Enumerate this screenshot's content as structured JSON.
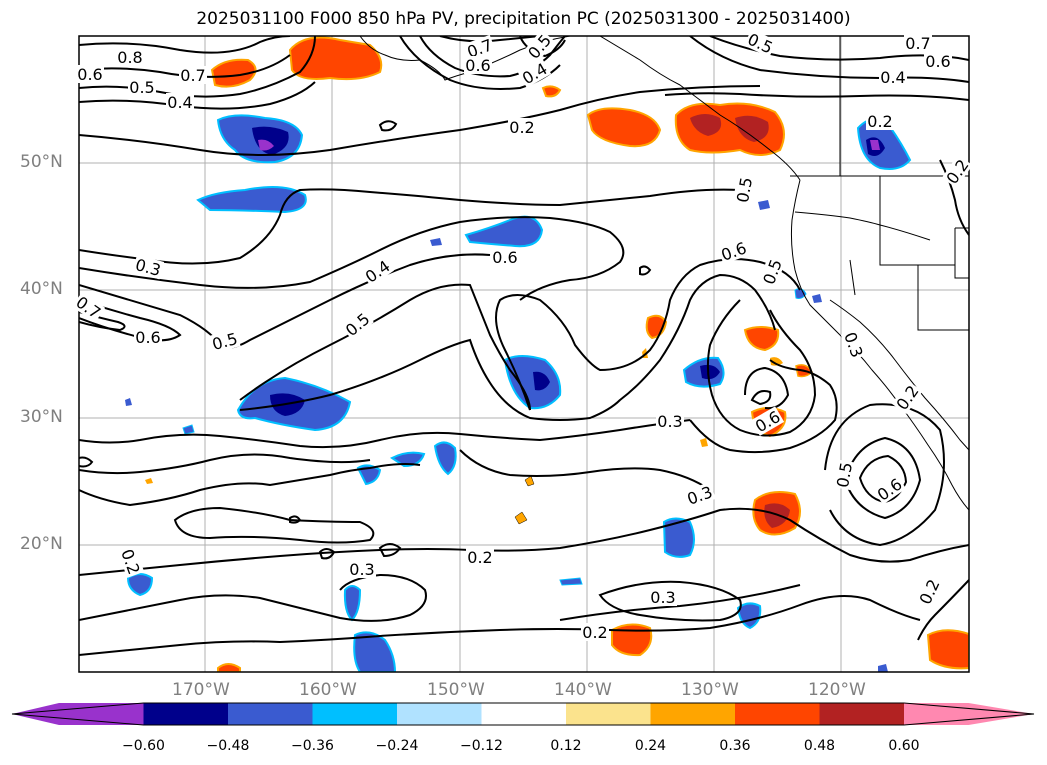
{
  "title": "2025031100 F000 850 hPa PV, precipitation PC (2025031300 - 2025031400)",
  "lat_labels": [
    "50°N",
    "40°N",
    "30°N",
    "20°N"
  ],
  "lon_labels": [
    "170°W",
    "160°W",
    "150°W",
    "140°W",
    "130°W",
    "120°W"
  ],
  "colorbar": {
    "tick_labels": [
      "−0.60",
      "−0.48",
      "−0.36",
      "−0.24",
      "−0.12",
      "0.12",
      "0.24",
      "0.36",
      "0.48",
      "0.60"
    ],
    "colors": [
      "#9932cc",
      "#00008b",
      "#3a5bd0",
      "#00bfff",
      "#b0e2ff",
      "#ffffff",
      "#fbe38d",
      "#ffa500",
      "#ff4500",
      "#b22222",
      "#ff88b0"
    ]
  },
  "contour_labels": [
    {
      "t": "0.8"
    },
    {
      "t": "0.6"
    },
    {
      "t": "0.7"
    },
    {
      "t": "0.5"
    },
    {
      "t": "0.4"
    },
    {
      "t": "0.7"
    },
    {
      "t": "0.6"
    },
    {
      "t": "0.5"
    },
    {
      "t": "0.4"
    },
    {
      "t": "0.5"
    },
    {
      "t": "0.7"
    },
    {
      "t": "0.6"
    },
    {
      "t": "0.4"
    },
    {
      "t": "0.2"
    },
    {
      "t": "0.2"
    },
    {
      "t": "0.3"
    },
    {
      "t": "0.4"
    },
    {
      "t": "0.6"
    },
    {
      "t": "0.5"
    },
    {
      "t": "0.6"
    },
    {
      "t": "0.5"
    },
    {
      "t": "0.7"
    },
    {
      "t": "0.6"
    },
    {
      "t": "0.5"
    },
    {
      "t": "0.3"
    },
    {
      "t": "0.6"
    },
    {
      "t": "0.3"
    },
    {
      "t": "0.2"
    },
    {
      "t": "0.6"
    },
    {
      "t": "0.5"
    },
    {
      "t": "0.3"
    },
    {
      "t": "0.2"
    },
    {
      "t": "0.3"
    },
    {
      "t": "0.2"
    },
    {
      "t": "0.3"
    },
    {
      "t": "0.2"
    },
    {
      "t": "0.2"
    },
    {
      "t": "0.2"
    },
    {
      "t": "0.5"
    }
  ]
}
